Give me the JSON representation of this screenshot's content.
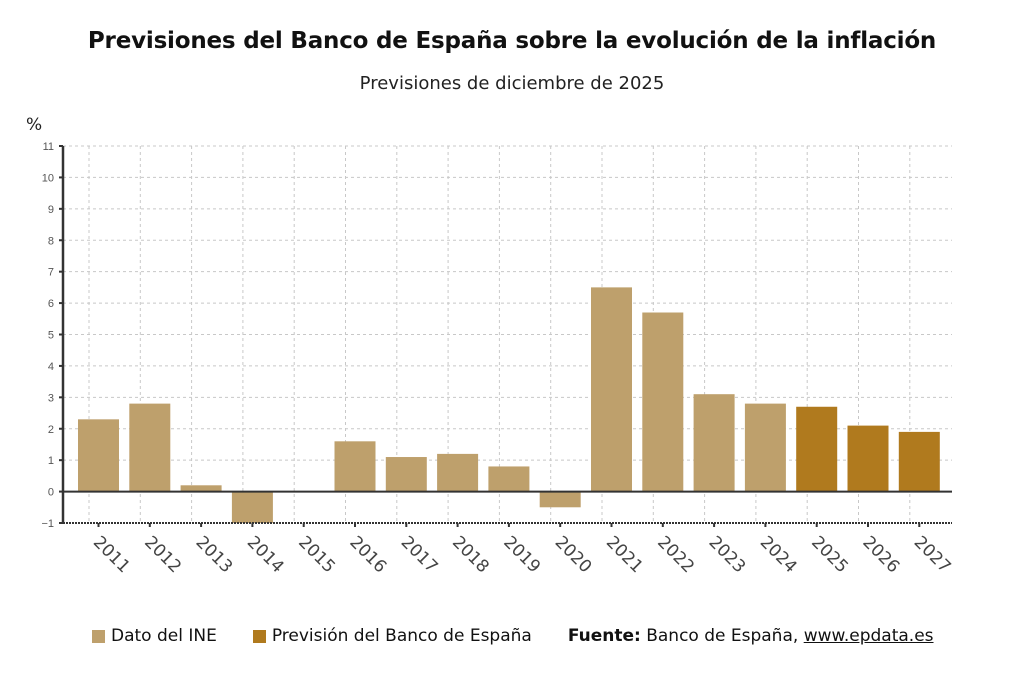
{
  "header": {
    "title": "Previsiones del Banco de España sobre la evolución de la inflación",
    "subtitle": "Previsiones de diciembre de 2025",
    "unit": "%"
  },
  "legend": {
    "items": [
      {
        "label": "Dato del INE",
        "color": "#BEA06C"
      },
      {
        "label": "Previsión del Banco de España",
        "color": "#B07A1E"
      }
    ],
    "source_label": "Fuente:",
    "source_text": " Banco de España, ",
    "source_link": "www.epdata.es"
  },
  "chart_data": {
    "type": "bar",
    "title": "Previsiones del Banco de España sobre la evolución de la inflación",
    "subtitle": "Previsiones de diciembre de 2025",
    "xlabel": "",
    "ylabel": "%",
    "ylim": [
      -1,
      11
    ],
    "yticks": [
      -1,
      0,
      1,
      2,
      3,
      4,
      5,
      6,
      7,
      8,
      9,
      10,
      11
    ],
    "ytick_labels": [
      "−1",
      "0",
      "1",
      "2",
      "3",
      "4",
      "5",
      "6",
      "7",
      "8",
      "9",
      "10",
      "11"
    ],
    "grid": true,
    "legend_position": "bottom-left",
    "categories": [
      "2011",
      "2012",
      "2013",
      "2014",
      "2015",
      "2016",
      "2017",
      "2018",
      "2019",
      "2020",
      "2021",
      "2022",
      "2023",
      "2024",
      "2025",
      "2026",
      "2027"
    ],
    "series": [
      {
        "name": "Dato del INE",
        "color": "#BEA06C",
        "values": [
          2.3,
          2.8,
          0.2,
          -1.0,
          0.0,
          1.6,
          1.1,
          1.2,
          0.8,
          -0.5,
          6.5,
          5.7,
          3.1,
          2.8,
          null,
          null,
          null
        ]
      },
      {
        "name": "Previsión del Banco de España",
        "color": "#B07A1E",
        "values": [
          null,
          null,
          null,
          null,
          null,
          null,
          null,
          null,
          null,
          null,
          null,
          null,
          null,
          null,
          2.7,
          2.1,
          1.9
        ]
      }
    ]
  }
}
